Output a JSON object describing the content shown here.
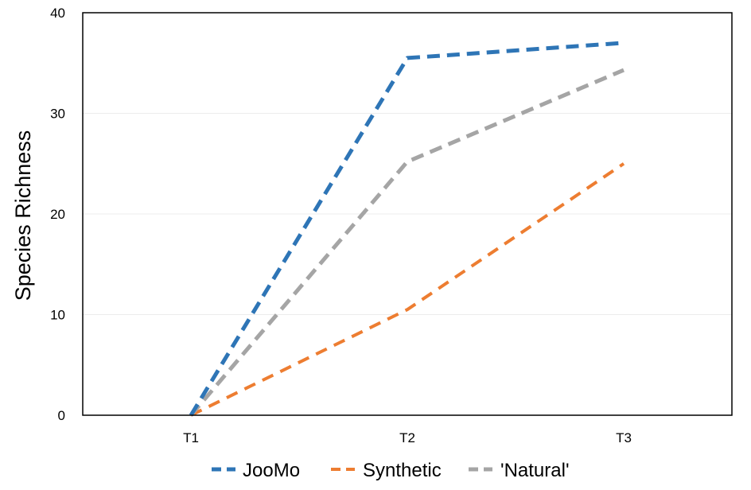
{
  "chart_data": {
    "type": "line",
    "title": "",
    "xlabel": "",
    "ylabel": "Species Richness",
    "categories": [
      "T1",
      "T2",
      "T3"
    ],
    "ylim": [
      0,
      40
    ],
    "yticks": [
      0,
      10,
      20,
      30,
      40
    ],
    "grid": "horizontal",
    "legend_position": "bottom",
    "line_style": "dashed",
    "series": [
      {
        "name": "JooMo",
        "values": [
          0,
          35.5,
          37
        ],
        "color": "#2E75B6"
      },
      {
        "name": "Synthetic",
        "values": [
          0,
          10.5,
          25
        ],
        "color": "#ED7D31"
      },
      {
        "name": "'Natural'",
        "values": [
          0,
          25.2,
          34.3
        ],
        "color": "#A5A5A5"
      }
    ]
  }
}
